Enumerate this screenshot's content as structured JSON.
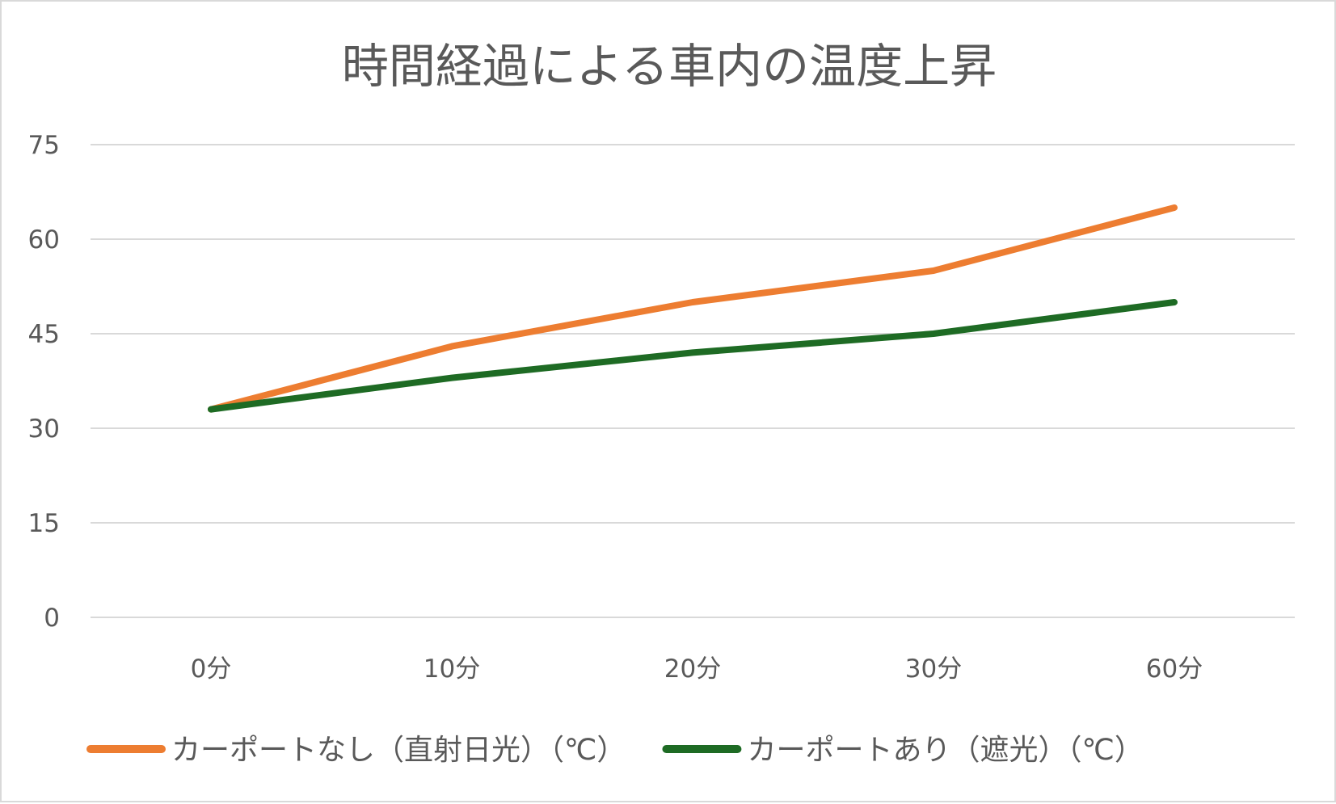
{
  "chart_data": {
    "type": "line",
    "title": "時間経過による車内の温度上昇",
    "categories": [
      "0分",
      "10分",
      "20分",
      "30分",
      "60分"
    ],
    "series": [
      {
        "name": "カーポートなし（直射日光）（℃）",
        "color": "#ed7d31",
        "values": [
          33,
          43,
          50,
          55,
          65
        ]
      },
      {
        "name": "カーポートあり（遮光）（℃）",
        "color": "#1e6b24",
        "values": [
          33,
          38,
          42,
          45,
          50
        ]
      }
    ],
    "ylim": [
      0,
      75
    ],
    "yticks": [
      0,
      15,
      30,
      45,
      60,
      75
    ],
    "grid": true,
    "legend_position": "bottom"
  }
}
